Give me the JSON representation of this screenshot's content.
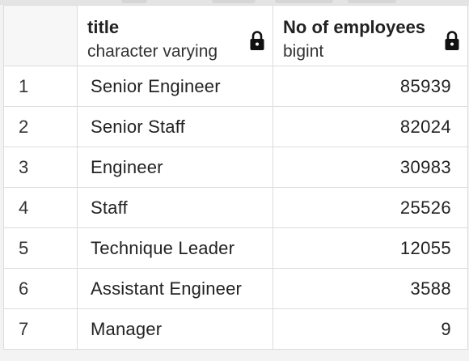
{
  "table": {
    "columns": [
      {
        "name": "title",
        "type": "character varying",
        "icon": "lock-icon"
      },
      {
        "name": "No of employees",
        "type": "bigint",
        "icon": "lock-icon"
      }
    ],
    "rows": [
      {
        "num": "1",
        "title": "Senior Engineer",
        "count": "85939"
      },
      {
        "num": "2",
        "title": "Senior Staff",
        "count": "82024"
      },
      {
        "num": "3",
        "title": "Engineer",
        "count": "30983"
      },
      {
        "num": "4",
        "title": "Staff",
        "count": "25526"
      },
      {
        "num": "5",
        "title": "Technique Leader",
        "count": "12055"
      },
      {
        "num": "6",
        "title": "Assistant Engineer",
        "count": "3588"
      },
      {
        "num": "7",
        "title": "Manager",
        "count": "9"
      }
    ]
  },
  "colors": {
    "grid_line": "#dcdcdc",
    "header_bg": "#ffffff",
    "text": "#222222"
  }
}
